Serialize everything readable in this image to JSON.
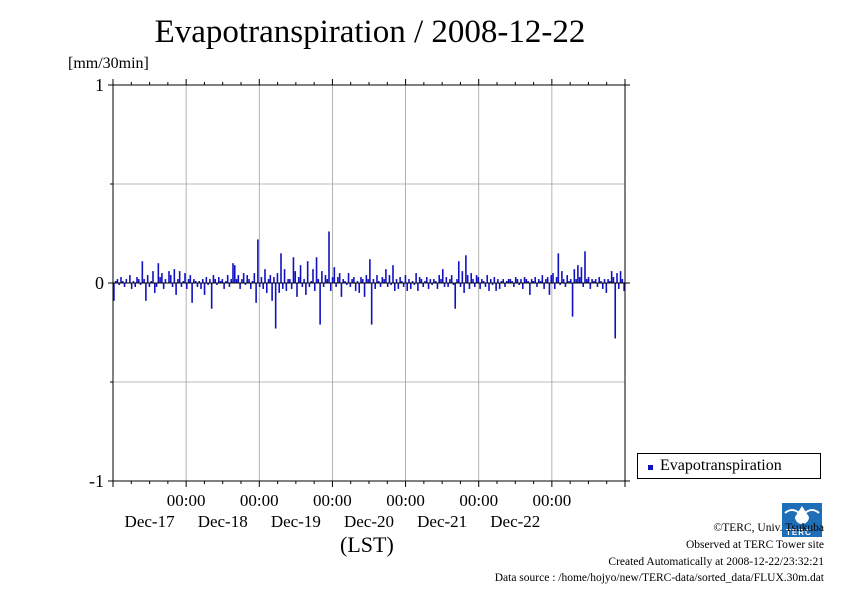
{
  "chart_data": {
    "type": "bar",
    "title": "Evapotranspiration / 2008-12-22",
    "ylabel": "[mm/30min]",
    "xlabel": "(LST)",
    "ylim": [
      -1,
      1
    ],
    "yticks": [
      "-1",
      "0",
      "1"
    ],
    "xticks": [
      {
        "time": "00:00",
        "date": "Dec-17"
      },
      {
        "time": "00:00",
        "date": "Dec-18"
      },
      {
        "time": "00:00",
        "date": "Dec-19"
      },
      {
        "time": "00:00",
        "date": "Dec-20"
      },
      {
        "time": "00:00",
        "date": "Dec-21"
      },
      {
        "time": "00:00",
        "date": "Dec-22"
      }
    ],
    "x_start": "2008-12-16 00:00",
    "x_end": "2008-12-22 24:00",
    "interval": "30min",
    "grid": true,
    "legend_position": "bottom-right",
    "series": [
      {
        "name": "Evapotranspiration",
        "color": "#1010c0",
        "values": [
          -0.09,
          0.01,
          0.02,
          -0.01,
          0.03,
          0.01,
          -0.02,
          0.02,
          0.0,
          0.04,
          -0.03,
          0.01,
          -0.02,
          0.03,
          0.02,
          -0.01,
          0.11,
          0.02,
          -0.09,
          0.04,
          -0.02,
          0.01,
          0.06,
          -0.05,
          -0.02,
          0.1,
          0.03,
          0.05,
          -0.03,
          0.02,
          0.0,
          0.06,
          0.04,
          -0.02,
          0.07,
          -0.06,
          0.02,
          0.06,
          -0.02,
          0.01,
          0.05,
          -0.03,
          0.02,
          0.04,
          -0.1,
          0.02,
          0.01,
          -0.02,
          0.01,
          -0.03,
          0.02,
          -0.06,
          0.03,
          -0.01,
          0.02,
          -0.13,
          0.04,
          0.02,
          -0.01,
          0.03,
          0.01,
          0.02,
          -0.03,
          0.01,
          0.04,
          -0.02,
          0.02,
          0.1,
          0.09,
          0.02,
          0.04,
          -0.03,
          0.02,
          0.05,
          -0.01,
          0.04,
          0.02,
          -0.03,
          0.01,
          0.05,
          -0.1,
          0.22,
          -0.02,
          0.03,
          -0.03,
          0.07,
          -0.05,
          0.02,
          0.04,
          -0.09,
          0.03,
          -0.23,
          0.05,
          -0.05,
          0.15,
          -0.03,
          0.07,
          -0.04,
          0.02,
          0.02,
          -0.03,
          0.13,
          0.06,
          -0.07,
          0.03,
          0.09,
          -0.02,
          0.02,
          -0.06,
          0.11,
          -0.02,
          0.01,
          0.07,
          -0.04,
          0.13,
          0.02,
          -0.21,
          0.06,
          -0.02,
          0.04,
          0.02,
          0.26,
          -0.04,
          0.03,
          0.08,
          -0.02,
          0.03,
          0.05,
          -0.07,
          0.02,
          0.01,
          -0.01,
          0.05,
          -0.02,
          0.02,
          0.03,
          -0.04,
          0.01,
          -0.05,
          0.03,
          0.02,
          -0.07,
          0.04,
          0.02,
          0.12,
          -0.21,
          0.02,
          -0.03,
          0.04,
          0.01,
          -0.02,
          0.03,
          0.02,
          0.07,
          -0.02,
          0.04,
          -0.01,
          0.09,
          -0.04,
          0.02,
          -0.03,
          0.03,
          0.01,
          -0.02,
          0.04,
          -0.04,
          0.02,
          -0.03,
          0.01,
          -0.01,
          0.05,
          -0.04,
          0.03,
          0.02,
          -0.02,
          0.01,
          0.03,
          -0.03,
          0.02,
          -0.01,
          0.02,
          0.01,
          -0.03,
          0.04,
          0.02,
          0.07,
          -0.02,
          0.03,
          -0.02,
          0.02,
          0.04,
          -0.01,
          -0.13,
          0.02,
          0.11,
          -0.02,
          0.06,
          -0.05,
          0.14,
          0.04,
          -0.03,
          0.05,
          0.02,
          -0.02,
          0.04,
          0.03,
          -0.03,
          0.02,
          0.01,
          -0.02,
          0.04,
          -0.04,
          0.02,
          -0.01,
          0.03,
          -0.04,
          0.02,
          -0.03,
          0.01,
          0.02,
          -0.02,
          0.01,
          0.02,
          0.02,
          0.01,
          -0.02,
          0.03,
          0.02,
          -0.01,
          0.02,
          -0.03,
          0.03,
          0.02,
          0.01,
          -0.06,
          0.02,
          0.01,
          0.03,
          -0.02,
          0.02,
          0.01,
          0.04,
          -0.03,
          0.02,
          0.03,
          -0.06,
          0.04,
          0.05,
          -0.03,
          0.03,
          0.15,
          -0.01,
          0.06,
          0.02,
          -0.02,
          0.04,
          0.01,
          0.02,
          -0.17,
          0.07,
          0.02,
          0.09,
          0.03,
          0.08,
          -0.02,
          0.16,
          0.02,
          0.03,
          -0.03,
          0.02,
          0.01,
          0.02,
          -0.02,
          0.03,
          0.01,
          -0.03,
          0.02,
          -0.05,
          0.02,
          0.01,
          0.06,
          0.03,
          -0.28,
          0.05,
          -0.03,
          0.06,
          0.02,
          -0.04
        ]
      }
    ]
  },
  "credits": {
    "copyright": "©TERC, Univ. Tsukuba",
    "observed": "Observed at TERC Tower site",
    "created": "Created Automatically at 2008-12-22/23:32:21",
    "source": "Data source : /home/hojyo/new/TERC-data/sorted_data/FLUX.30m.dat",
    "logo_text": "TERC"
  }
}
